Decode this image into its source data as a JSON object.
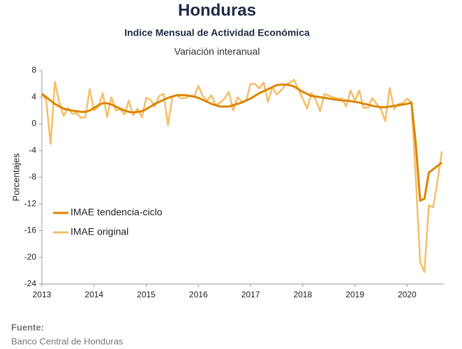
{
  "chart_data": {
    "type": "line",
    "title": "Honduras",
    "subtitle": "Indice Mensual de  Actividad Económica",
    "note": "Variación interanual",
    "y_label": "Porcentajes",
    "categories": [
      "2013",
      null,
      null,
      null,
      null,
      null,
      null,
      null,
      null,
      null,
      null,
      null,
      "2014",
      null,
      null,
      null,
      null,
      null,
      null,
      null,
      null,
      null,
      null,
      null,
      "2015",
      null,
      null,
      null,
      null,
      null,
      null,
      null,
      null,
      null,
      null,
      null,
      "2016",
      null,
      null,
      null,
      null,
      null,
      null,
      null,
      null,
      null,
      null,
      null,
      "2017",
      null,
      null,
      null,
      null,
      null,
      null,
      null,
      null,
      null,
      null,
      null,
      "2018",
      null,
      null,
      null,
      null,
      null,
      null,
      null,
      null,
      null,
      null,
      null,
      "2019",
      null,
      null,
      null,
      null,
      null,
      null,
      null,
      null,
      null,
      null,
      null,
      "2020",
      null,
      null,
      null,
      null,
      null,
      null,
      null,
      null
    ],
    "series": [
      {
        "name": "IMAE tendencia-ciclo",
        "color": "#db8500",
        "values": [
          4.5,
          4.0,
          3.5,
          3.0,
          2.6,
          2.3,
          2.1,
          2.0,
          1.9,
          1.8,
          1.8,
          2.0,
          2.4,
          2.8,
          3.1,
          3.1,
          2.9,
          2.6,
          2.3,
          2.0,
          1.8,
          1.7,
          1.8,
          1.9,
          2.2,
          2.6,
          3.0,
          3.3,
          3.6,
          3.9,
          4.1,
          4.3,
          4.3,
          4.3,
          4.2,
          4.1,
          3.9,
          3.6,
          3.3,
          3.0,
          2.8,
          2.6,
          2.6,
          2.6,
          2.8,
          3.0,
          3.2,
          3.5,
          3.8,
          4.2,
          4.6,
          4.9,
          5.2,
          5.5,
          5.8,
          5.9,
          5.9,
          5.8,
          5.6,
          5.2,
          4.8,
          4.5,
          4.2,
          4.1,
          4.0,
          3.9,
          3.8,
          3.7,
          3.6,
          3.5,
          3.5,
          3.4,
          3.3,
          3.2,
          3.0,
          2.9,
          2.7,
          2.6,
          2.5,
          2.5,
          2.6,
          2.7,
          2.8,
          2.9,
          3.0,
          3.2,
          -3.0,
          -11.5,
          -11.2,
          -7.3,
          -6.8,
          -6.3,
          -5.8
        ]
      },
      {
        "name": "IMAE original",
        "color": "#f5bd66",
        "values": [
          4.6,
          3.5,
          -3.0,
          6.3,
          3.2,
          1.2,
          2.4,
          1.5,
          1.6,
          0.9,
          1.0,
          5.2,
          2.0,
          2.6,
          4.6,
          1.0,
          4.0,
          2.0,
          2.2,
          1.4,
          3.5,
          1.3,
          2.3,
          1.0,
          3.9,
          3.6,
          2.6,
          4.2,
          4.5,
          -0.2,
          4.0,
          4.3,
          3.8,
          3.9,
          4.2,
          4.0,
          5.7,
          4.2,
          3.5,
          4.3,
          2.8,
          3.2,
          3.8,
          4.8,
          2.0,
          4.0,
          3.3,
          3.5,
          6.0,
          6.0,
          5.3,
          6.2,
          3.3,
          5.5,
          4.4,
          5.0,
          5.8,
          6.2,
          6.6,
          5.2,
          3.8,
          2.3,
          4.6,
          3.6,
          1.9,
          4.5,
          4.2,
          4.0,
          3.8,
          3.8,
          2.6,
          5.0,
          3.5,
          5.0,
          2.4,
          2.4,
          3.9,
          3.0,
          2.2,
          0.4,
          5.4,
          2.2,
          3.0,
          3.1,
          3.8,
          3.2,
          -8.0,
          -20.7,
          -22.2,
          -12.2,
          -12.5,
          -8.5,
          -4.1
        ]
      }
    ],
    "ylim": [
      -24,
      8
    ],
    "yticks": [
      8,
      4,
      0,
      -4,
      -8,
      -12,
      -16,
      -20,
      -24
    ],
    "grid": false,
    "legend": "lower-left"
  },
  "source": {
    "label": "Fuente:",
    "text": "Banco Central de Honduras"
  }
}
